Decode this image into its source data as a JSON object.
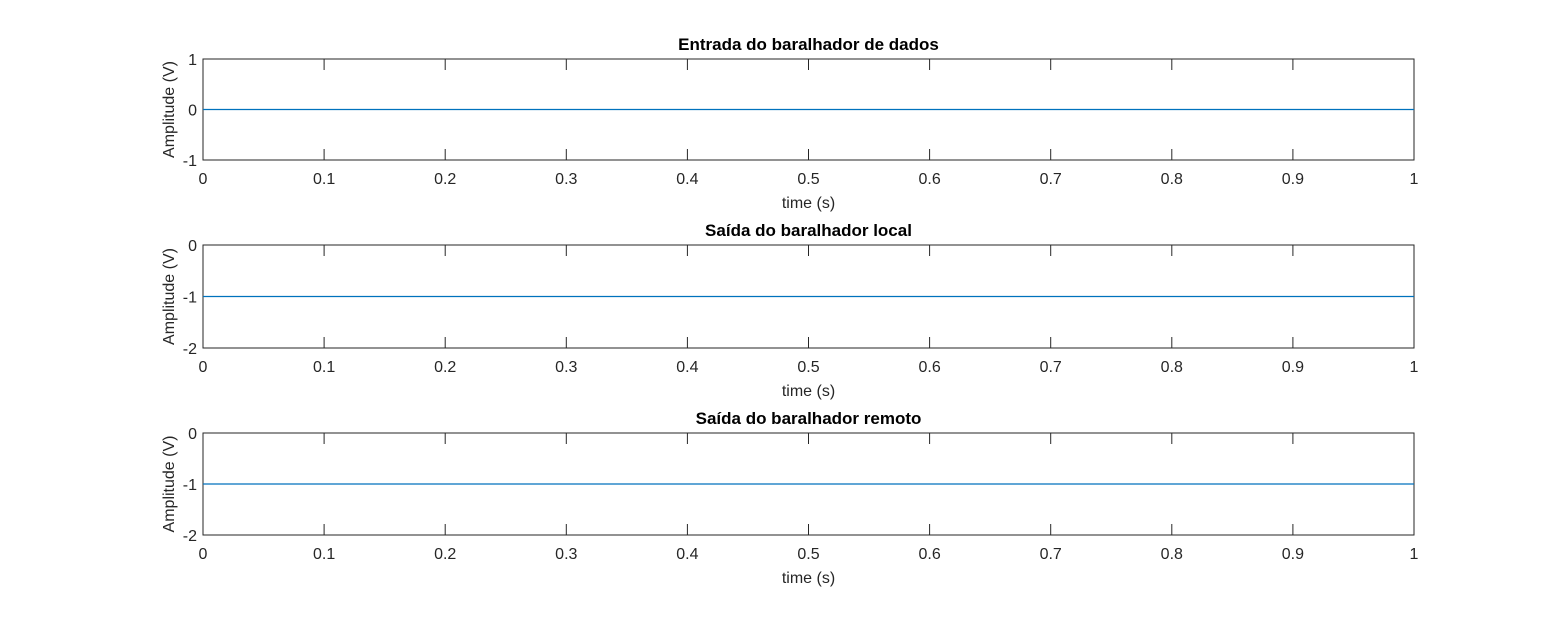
{
  "chart_data": [
    {
      "type": "line",
      "title": "Entrada do baralhador de dados",
      "xlabel": "time (s)",
      "ylabel": "Amplitude (V)",
      "xlim": [
        0,
        1
      ],
      "ylim": [
        -1,
        1
      ],
      "xticks": [
        0,
        0.1,
        0.2,
        0.3,
        0.4,
        0.5,
        0.6,
        0.7,
        0.8,
        0.9,
        1
      ],
      "xtick_labels": [
        "0",
        "0.1",
        "0.2",
        "0.3",
        "0.4",
        "0.5",
        "0.6",
        "0.7",
        "0.8",
        "0.9",
        "1"
      ],
      "yticks": [
        -1,
        0,
        1
      ],
      "ytick_labels": [
        "-1",
        "0",
        "1"
      ],
      "grid": false,
      "series": [
        {
          "x": [
            0,
            1
          ],
          "y": [
            0,
            0
          ],
          "color": "#0072BD"
        }
      ]
    },
    {
      "type": "line",
      "title": "Saída do baralhador local",
      "xlabel": "time (s)",
      "ylabel": "Amplitude (V)",
      "xlim": [
        0,
        1
      ],
      "ylim": [
        -2,
        0
      ],
      "xticks": [
        0,
        0.1,
        0.2,
        0.3,
        0.4,
        0.5,
        0.6,
        0.7,
        0.8,
        0.9,
        1
      ],
      "xtick_labels": [
        "0",
        "0.1",
        "0.2",
        "0.3",
        "0.4",
        "0.5",
        "0.6",
        "0.7",
        "0.8",
        "0.9",
        "1"
      ],
      "yticks": [
        -2,
        -1,
        0
      ],
      "ytick_labels": [
        "-2",
        "-1",
        "0"
      ],
      "grid": false,
      "series": [
        {
          "x": [
            0,
            1
          ],
          "y": [
            -1,
            -1
          ],
          "color": "#0072BD"
        }
      ]
    },
    {
      "type": "line",
      "title": "Saída do baralhador remoto",
      "xlabel": "time (s)",
      "ylabel": "Amplitude (V)",
      "xlim": [
        0,
        1
      ],
      "ylim": [
        -2,
        0
      ],
      "xticks": [
        0,
        0.1,
        0.2,
        0.3,
        0.4,
        0.5,
        0.6,
        0.7,
        0.8,
        0.9,
        1
      ],
      "xtick_labels": [
        "0",
        "0.1",
        "0.2",
        "0.3",
        "0.4",
        "0.5",
        "0.6",
        "0.7",
        "0.8",
        "0.9",
        "1"
      ],
      "yticks": [
        -2,
        -1,
        0
      ],
      "ytick_labels": [
        "-2",
        "-1",
        "0"
      ],
      "grid": false,
      "series": [
        {
          "x": [
            0,
            1
          ],
          "y": [
            -1,
            -1
          ],
          "color": "#0072BD"
        }
      ]
    }
  ]
}
